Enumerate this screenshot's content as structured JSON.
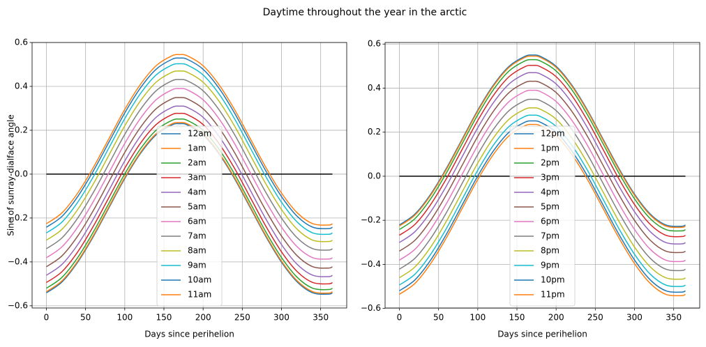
{
  "title": "Daytime throughout the year in the arctic",
  "chart_data": [
    {
      "type": "line",
      "xlabel": "Days since perihelion",
      "ylabel": "Sine of sunray-dialface angle",
      "grid": true,
      "legend": "lower center",
      "xlim": [
        -18.25,
        383.25
      ],
      "xticks": [
        0,
        50,
        100,
        150,
        200,
        250,
        300,
        350
      ],
      "ylim": [
        -0.61,
        0.6
      ],
      "yticks": [
        {
          "value": -0.6,
          "label": "−0.6"
        },
        {
          "value": -0.4,
          "label": "−0.4"
        },
        {
          "value": -0.2,
          "label": "−0.2"
        },
        {
          "value": 0,
          "label": "0.0"
        },
        0.2,
        0.4,
        0.6
      ],
      "reference_line": {
        "x": [
          0,
          365
        ],
        "values": [
          0,
          0
        ],
        "color": "#000000"
      },
      "x": [
        0,
        20,
        40,
        60,
        80,
        100,
        120,
        140,
        160,
        170,
        180,
        200,
        220,
        240,
        260,
        280,
        300,
        320,
        340,
        360,
        365
      ],
      "series": [
        {
          "name": "12am",
          "color": "#1f77b4",
          "values": [
            -0.541,
            -0.491,
            -0.401,
            -0.284,
            -0.152,
            -0.02,
            0.094,
            0.179,
            0.224,
            0.23,
            0.224,
            0.179,
            0.094,
            -0.02,
            -0.152,
            -0.284,
            -0.401,
            -0.491,
            -0.541,
            -0.547,
            -0.541
          ]
        },
        {
          "name": "1am",
          "color": "#ff7f0e",
          "values": [
            -0.536,
            -0.486,
            -0.396,
            -0.279,
            -0.147,
            -0.015,
            0.099,
            0.184,
            0.229,
            0.235,
            0.229,
            0.184,
            0.099,
            -0.015,
            -0.147,
            -0.279,
            -0.396,
            -0.486,
            -0.536,
            -0.542,
            -0.536
          ]
        },
        {
          "name": "2am",
          "color": "#2ca02c",
          "values": [
            -0.52,
            -0.47,
            -0.38,
            -0.263,
            -0.131,
            0.001,
            0.115,
            0.2,
            0.245,
            0.251,
            0.245,
            0.2,
            0.115,
            0.001,
            -0.131,
            -0.263,
            -0.38,
            -0.47,
            -0.52,
            -0.526,
            -0.52
          ]
        },
        {
          "name": "3am",
          "color": "#d62728",
          "values": [
            -0.494,
            -0.444,
            -0.354,
            -0.237,
            -0.105,
            0.027,
            0.141,
            0.226,
            0.271,
            0.277,
            0.271,
            0.226,
            0.141,
            0.027,
            -0.105,
            -0.237,
            -0.354,
            -0.444,
            -0.494,
            -0.5,
            -0.494
          ]
        },
        {
          "name": "4am",
          "color": "#9467bd",
          "values": [
            -0.461,
            -0.411,
            -0.321,
            -0.204,
            -0.072,
            0.06,
            0.174,
            0.259,
            0.304,
            0.31,
            0.304,
            0.259,
            0.174,
            0.06,
            -0.072,
            -0.204,
            -0.321,
            -0.411,
            -0.461,
            -0.467,
            -0.461
          ]
        },
        {
          "name": "5am",
          "color": "#8c564b",
          "values": [
            -0.422,
            -0.372,
            -0.282,
            -0.165,
            -0.033,
            0.099,
            0.213,
            0.298,
            0.343,
            0.349,
            0.343,
            0.298,
            0.213,
            0.099,
            -0.033,
            -0.165,
            -0.282,
            -0.372,
            -0.422,
            -0.428,
            -0.422
          ]
        },
        {
          "name": "6am",
          "color": "#e377c2",
          "values": [
            -0.381,
            -0.331,
            -0.241,
            -0.124,
            0.008,
            0.14,
            0.254,
            0.339,
            0.384,
            0.39,
            0.384,
            0.339,
            0.254,
            0.14,
            0.008,
            -0.124,
            -0.241,
            -0.331,
            -0.381,
            -0.387,
            -0.381
          ]
        },
        {
          "name": "7am",
          "color": "#7f7f7f",
          "values": [
            -0.34,
            -0.29,
            -0.2,
            -0.083,
            0.049,
            0.181,
            0.295,
            0.38,
            0.425,
            0.431,
            0.425,
            0.38,
            0.295,
            0.181,
            0.049,
            -0.083,
            -0.2,
            -0.29,
            -0.34,
            -0.346,
            -0.34
          ]
        },
        {
          "name": "8am",
          "color": "#bcbd22",
          "values": [
            -0.301,
            -0.251,
            -0.161,
            -0.044,
            0.088,
            0.22,
            0.334,
            0.419,
            0.464,
            0.47,
            0.464,
            0.419,
            0.334,
            0.22,
            0.088,
            -0.044,
            -0.161,
            -0.251,
            -0.301,
            -0.307,
            -0.301
          ]
        },
        {
          "name": "9am",
          "color": "#17becf",
          "values": [
            -0.268,
            -0.218,
            -0.128,
            -0.011,
            0.121,
            0.253,
            0.367,
            0.452,
            0.497,
            0.503,
            0.497,
            0.452,
            0.367,
            0.253,
            0.121,
            -0.011,
            -0.128,
            -0.218,
            -0.268,
            -0.274,
            -0.268
          ]
        },
        {
          "name": "10am",
          "color": "#1f77b4",
          "values": [
            -0.242,
            -0.192,
            -0.102,
            0.015,
            0.147,
            0.279,
            0.393,
            0.478,
            0.523,
            0.529,
            0.523,
            0.478,
            0.393,
            0.279,
            0.147,
            0.015,
            -0.102,
            -0.192,
            -0.242,
            -0.248,
            -0.242
          ]
        },
        {
          "name": "11am",
          "color": "#ff7f0e",
          "values": [
            -0.226,
            -0.176,
            -0.086,
            0.031,
            0.163,
            0.295,
            0.409,
            0.494,
            0.539,
            0.545,
            0.539,
            0.494,
            0.409,
            0.295,
            0.163,
            0.031,
            -0.086,
            -0.176,
            -0.226,
            -0.232,
            -0.226
          ]
        }
      ]
    },
    {
      "type": "line",
      "xlabel": "Days since perihelion",
      "grid": true,
      "legend": "lower center",
      "xlim": [
        -18.25,
        383.25
      ],
      "xticks": [
        0,
        50,
        100,
        150,
        200,
        250,
        300,
        350
      ],
      "ylim": [
        -0.598,
        0.607
      ],
      "yticks": [
        {
          "value": -0.6,
          "label": "−0.6"
        },
        {
          "value": -0.4,
          "label": "−0.4"
        },
        {
          "value": -0.2,
          "label": "−0.2"
        },
        {
          "value": 0,
          "label": "0.0"
        },
        0.2,
        0.4,
        0.6
      ],
      "reference_line": {
        "x": [
          0,
          365
        ],
        "values": [
          0,
          0
        ],
        "color": "#000000"
      },
      "x": [
        0,
        20,
        40,
        60,
        80,
        100,
        120,
        140,
        160,
        170,
        180,
        200,
        220,
        240,
        260,
        280,
        300,
        320,
        340,
        360,
        365
      ],
      "series": [
        {
          "name": "12pm",
          "color": "#1f77b4",
          "values": [
            -0.221,
            -0.171,
            -0.081,
            0.036,
            0.168,
            0.3,
            0.414,
            0.499,
            0.544,
            0.55,
            0.544,
            0.499,
            0.414,
            0.3,
            0.168,
            0.036,
            -0.081,
            -0.171,
            -0.221,
            -0.227,
            -0.221
          ]
        },
        {
          "name": "1pm",
          "color": "#ff7f0e",
          "values": [
            -0.226,
            -0.176,
            -0.086,
            0.031,
            0.163,
            0.295,
            0.409,
            0.494,
            0.539,
            0.545,
            0.539,
            0.494,
            0.409,
            0.295,
            0.163,
            0.031,
            -0.086,
            -0.176,
            -0.226,
            -0.232,
            -0.226
          ]
        },
        {
          "name": "2pm",
          "color": "#2ca02c",
          "values": [
            -0.242,
            -0.192,
            -0.102,
            0.015,
            0.147,
            0.279,
            0.393,
            0.478,
            0.523,
            0.529,
            0.523,
            0.478,
            0.393,
            0.279,
            0.147,
            0.015,
            -0.102,
            -0.192,
            -0.242,
            -0.248,
            -0.242
          ]
        },
        {
          "name": "3pm",
          "color": "#d62728",
          "values": [
            -0.268,
            -0.218,
            -0.128,
            -0.011,
            0.121,
            0.253,
            0.367,
            0.452,
            0.497,
            0.503,
            0.497,
            0.452,
            0.367,
            0.253,
            0.121,
            -0.011,
            -0.128,
            -0.218,
            -0.268,
            -0.274,
            -0.268
          ]
        },
        {
          "name": "4pm",
          "color": "#9467bd",
          "values": [
            -0.301,
            -0.251,
            -0.161,
            -0.044,
            0.088,
            0.22,
            0.334,
            0.419,
            0.464,
            0.47,
            0.464,
            0.419,
            0.334,
            0.22,
            0.088,
            -0.044,
            -0.161,
            -0.251,
            -0.301,
            -0.307,
            -0.301
          ]
        },
        {
          "name": "5pm",
          "color": "#8c564b",
          "values": [
            -0.34,
            -0.29,
            -0.2,
            -0.083,
            0.049,
            0.181,
            0.295,
            0.38,
            0.425,
            0.431,
            0.425,
            0.38,
            0.295,
            0.181,
            0.049,
            -0.083,
            -0.2,
            -0.29,
            -0.34,
            -0.346,
            -0.34
          ]
        },
        {
          "name": "6pm",
          "color": "#e377c2",
          "values": [
            -0.381,
            -0.331,
            -0.241,
            -0.124,
            0.008,
            0.14,
            0.254,
            0.339,
            0.384,
            0.39,
            0.384,
            0.339,
            0.254,
            0.14,
            0.008,
            -0.124,
            -0.241,
            -0.331,
            -0.381,
            -0.387,
            -0.381
          ]
        },
        {
          "name": "7pm",
          "color": "#7f7f7f",
          "values": [
            -0.422,
            -0.372,
            -0.282,
            -0.165,
            -0.033,
            0.099,
            0.213,
            0.298,
            0.343,
            0.349,
            0.343,
            0.298,
            0.213,
            0.099,
            -0.033,
            -0.165,
            -0.282,
            -0.372,
            -0.422,
            -0.428,
            -0.422
          ]
        },
        {
          "name": "8pm",
          "color": "#bcbd22",
          "values": [
            -0.461,
            -0.411,
            -0.321,
            -0.204,
            -0.072,
            0.06,
            0.174,
            0.259,
            0.304,
            0.31,
            0.304,
            0.259,
            0.174,
            0.06,
            -0.072,
            -0.204,
            -0.321,
            -0.411,
            -0.461,
            -0.467,
            -0.461
          ]
        },
        {
          "name": "9pm",
          "color": "#17becf",
          "values": [
            -0.494,
            -0.444,
            -0.354,
            -0.237,
            -0.105,
            0.027,
            0.141,
            0.226,
            0.271,
            0.277,
            0.271,
            0.226,
            0.141,
            0.027,
            -0.105,
            -0.237,
            -0.354,
            -0.444,
            -0.494,
            -0.5,
            -0.494
          ]
        },
        {
          "name": "10pm",
          "color": "#1f77b4",
          "values": [
            -0.52,
            -0.47,
            -0.38,
            -0.263,
            -0.131,
            0.001,
            0.115,
            0.2,
            0.245,
            0.251,
            0.245,
            0.2,
            0.115,
            0.001,
            -0.131,
            -0.263,
            -0.38,
            -0.47,
            -0.52,
            -0.526,
            -0.52
          ]
        },
        {
          "name": "11pm",
          "color": "#ff7f0e",
          "values": [
            -0.536,
            -0.486,
            -0.396,
            -0.279,
            -0.147,
            -0.015,
            0.099,
            0.184,
            0.229,
            0.235,
            0.229,
            0.184,
            0.099,
            -0.015,
            -0.147,
            -0.279,
            -0.396,
            -0.486,
            -0.536,
            -0.542,
            -0.536
          ]
        }
      ]
    }
  ]
}
